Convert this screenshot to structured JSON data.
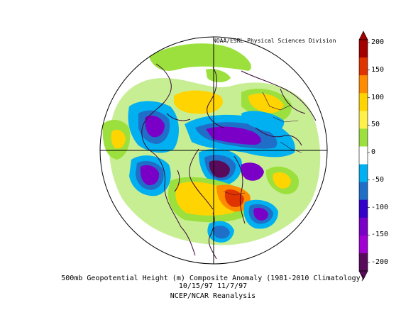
{
  "credit": "NOAA/ESRL Physical Sciences Division",
  "caption": {
    "line1": "500mb Geopotential Height (m) Composite Anomaly (1981-2010 Climatology)",
    "line2": "10/15/97 11/7/97",
    "line3": "NCEP/NCAR Reanalysis"
  },
  "colorbar": {
    "labels": [
      "200",
      "150",
      "100",
      "50",
      "0",
      "-50",
      "-100",
      "-150",
      "-200"
    ],
    "colors": [
      "#a50000",
      "#e03400",
      "#ff8c00",
      "#ffd400",
      "#fff04a",
      "#9be03c",
      "#ffffff",
      "#00b0f0",
      "#1f6ec8",
      "#3200c8",
      "#7a00c8",
      "#a000d2",
      "#5a0a5a"
    ]
  }
}
